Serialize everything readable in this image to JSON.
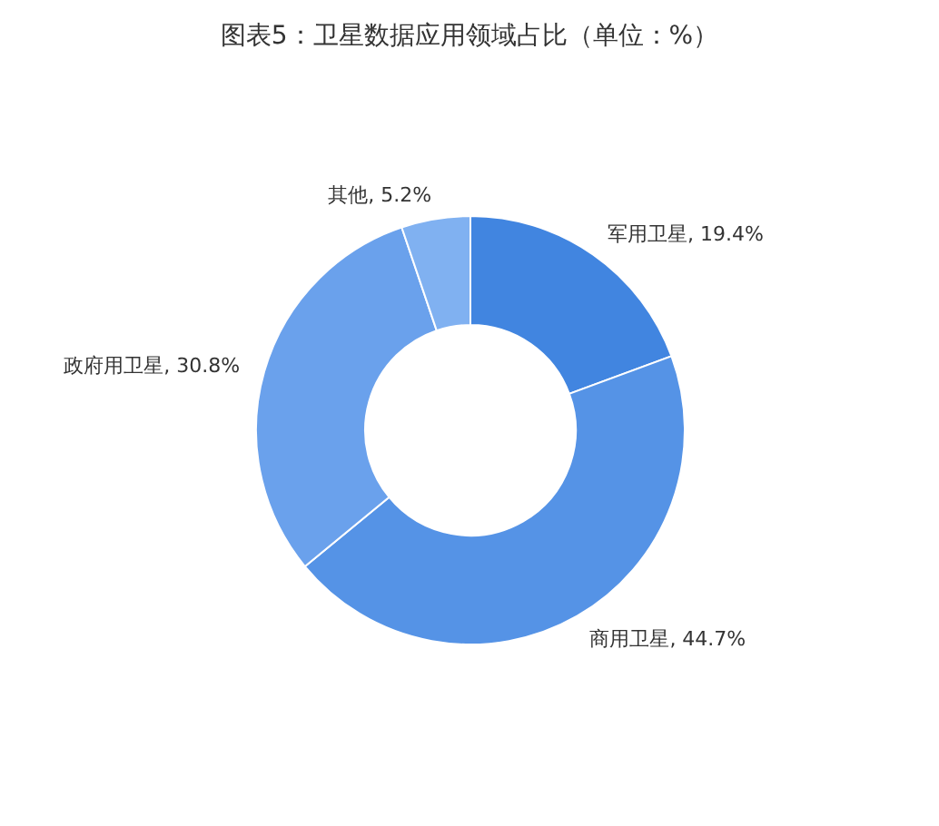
{
  "chart_data": {
    "type": "donut",
    "title": "图表5：卫星数据应用领域占比（单位：%）",
    "categories": [
      "军用卫星",
      "商用卫星",
      "政府用卫星",
      "其他"
    ],
    "values": [
      19.4,
      44.7,
      30.8,
      5.2
    ],
    "colors": [
      "#4185e0",
      "#5593e6",
      "#6aa1ec",
      "#80b1f1"
    ],
    "value_labels": [
      "19.4%",
      "44.7%",
      "30.8%",
      "5.2%"
    ]
  }
}
